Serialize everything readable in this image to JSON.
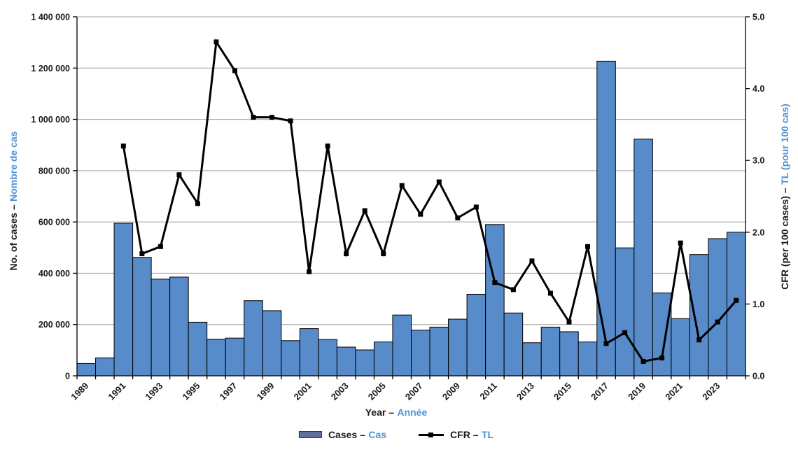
{
  "colors": {
    "bar_fill": "#578bc9",
    "bar_border": "#000000",
    "cfr_line": "#000000",
    "gridline": "#a0a0a0",
    "axis_line": "#000000",
    "text": "#1a1a1a",
    "french_text_blue": "#4f93d4",
    "legend_bar_fill": "#5e6e9d",
    "legend_bar_border": "#2a3a66"
  },
  "chart_data": {
    "type": "combo-bar-line",
    "categories": [
      "1989",
      "1990",
      "1991",
      "1992",
      "1993",
      "1994",
      "1995",
      "1996",
      "1997",
      "1998",
      "1999",
      "2000",
      "2001",
      "2002",
      "2003",
      "2004",
      "2005",
      "2006",
      "2007",
      "2008",
      "2009",
      "2010",
      "2011",
      "2012",
      "2013",
      "2014",
      "2015",
      "2016",
      "2017",
      "2018",
      "2019",
      "2020",
      "2021",
      "2022",
      "2023",
      "2024"
    ],
    "series": [
      {
        "name": "Cases – Cas",
        "type": "bar",
        "yaxis": "left",
        "values": [
          48000,
          70000,
          595000,
          462000,
          377000,
          385000,
          209000,
          143000,
          147000,
          293000,
          254000,
          137000,
          184000,
          142000,
          112000,
          101000,
          132000,
          237000,
          178000,
          190000,
          221000,
          318000,
          590000,
          245000,
          129000,
          190000,
          172000,
          132000,
          1227000,
          499000,
          923000,
          323000,
          223000,
          473000,
          535000,
          560000
        ]
      },
      {
        "name": "CFR – TL",
        "type": "line",
        "yaxis": "right",
        "values": [
          null,
          null,
          3.2,
          1.7,
          1.8,
          2.8,
          2.4,
          4.65,
          4.25,
          3.6,
          3.6,
          3.55,
          1.45,
          3.2,
          1.7,
          2.3,
          1.7,
          2.65,
          2.25,
          2.7,
          2.2,
          2.35,
          1.3,
          1.2,
          1.6,
          1.15,
          0.75,
          1.8,
          0.45,
          0.6,
          0.2,
          0.25,
          1.85,
          0.5,
          0.75,
          1.05
        ]
      }
    ],
    "title": "",
    "xlabel": "Year – Année",
    "ylabel_left": "No. of cases – Nombre de cas",
    "ylabel_right": "CFR (per 100 cases) – TL (pour 100 cas)",
    "left_axis": {
      "min": 0,
      "max": 1400000,
      "step": 200000,
      "tick_labels": [
        "0",
        "200 000",
        "400 000",
        "600 000",
        "800 000",
        "1 000 000",
        "1 200 000",
        "1 400 000"
      ]
    },
    "right_axis": {
      "min": 0,
      "max": 5,
      "step": 1,
      "tick_labels": [
        "0.0",
        "1.0",
        "2.0",
        "3.0",
        "4.0",
        "5.0"
      ]
    },
    "x_axis": {
      "tick_label_years": [
        "1989",
        "1991",
        "1993",
        "1995",
        "1997",
        "1999",
        "2001",
        "2003",
        "2005",
        "2007",
        "2009",
        "2011",
        "2013",
        "2015",
        "2017",
        "2019",
        "2021",
        "2023"
      ]
    },
    "grid": true,
    "legend_position": "bottom-center"
  },
  "titles": {
    "x_en": "Year –",
    "x_fr": "Année",
    "left_en": "No. of cases –",
    "left_fr": "Nombre de cas",
    "right_en": "CFR (per 100 cases) –",
    "right_fr": "TL (pour 100 cas)"
  },
  "legend": {
    "cases_en": "Cases –",
    "cases_fr": "Cas",
    "cfr_en": "CFR –",
    "cfr_fr": "TL"
  }
}
